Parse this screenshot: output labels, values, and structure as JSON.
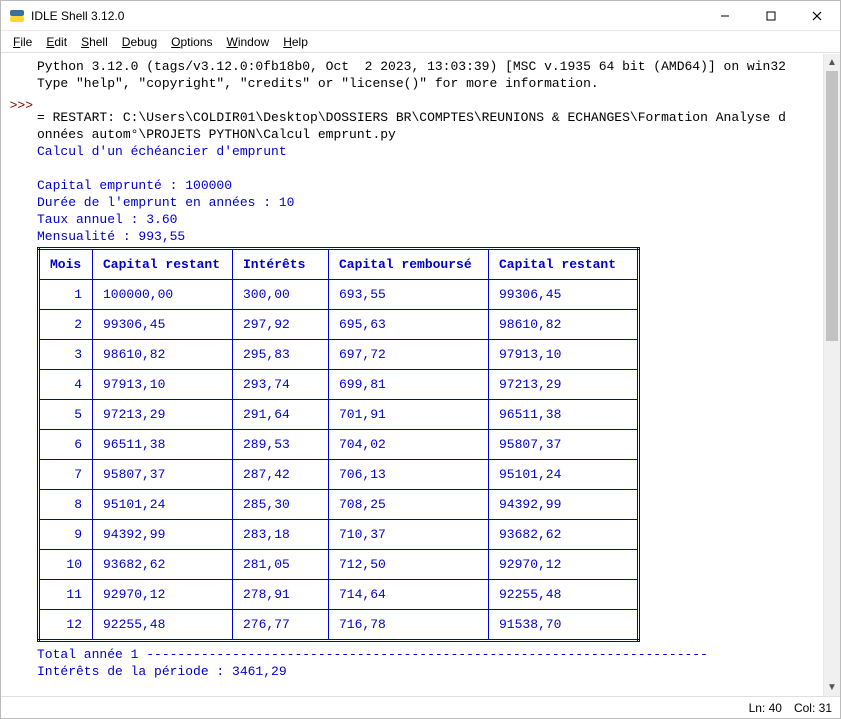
{
  "window": {
    "title": "IDLE Shell 3.12.0"
  },
  "menu": {
    "items": [
      "File",
      "Edit",
      "Shell",
      "Debug",
      "Options",
      "Window",
      "Help"
    ]
  },
  "gutter": {
    "prompt": ">>>"
  },
  "shell": {
    "banner_line1": "Python 3.12.0 (tags/v3.12.0:0fb18b0, Oct  2 2023, 13:03:39) [MSC v.1935 64 bit (AMD64)] on win32",
    "banner_line2": "Type \"help\", \"copyright\", \"credits\" or \"license()\" for more information.",
    "restart_line1": "= RESTART: C:\\Users\\COLDIR01\\Desktop\\DOSSIERS BR\\COMPTES\\REUNIONS & ECHANGES\\Formation Analyse d",
    "restart_line2": "onnées autom°\\PROJETS PYTHON\\Calcul emprunt.py",
    "out_title": "Calcul d'un échéancier d'emprunt",
    "out_cap": "Capital emprunté : 100000",
    "out_duree": "Durée de l'emprunt en années : 10",
    "out_taux": "Taux annuel : 3.60",
    "out_mens": "Mensualité : 993,55",
    "footer1": "Total année 1 ------------------------------------------------------------------------",
    "footer2": "Intérêts de la période : 3461,29"
  },
  "table": {
    "headers": [
      "Mois",
      "Capital restant",
      "Intérêts",
      "Capital remboursé",
      "Capital restant"
    ],
    "rows": [
      [
        "1",
        "100000,00",
        "300,00",
        "693,55",
        "99306,45"
      ],
      [
        "2",
        "99306,45",
        "297,92",
        "695,63",
        "98610,82"
      ],
      [
        "3",
        "98610,82",
        "295,83",
        "697,72",
        "97913,10"
      ],
      [
        "4",
        "97913,10",
        "293,74",
        "699,81",
        "97213,29"
      ],
      [
        "5",
        "97213,29",
        "291,64",
        "701,91",
        "96511,38"
      ],
      [
        "6",
        "96511,38",
        "289,53",
        "704,02",
        "95807,37"
      ],
      [
        "7",
        "95807,37",
        "287,42",
        "706,13",
        "95101,24"
      ],
      [
        "8",
        "95101,24",
        "285,30",
        "708,25",
        "94392,99"
      ],
      [
        "9",
        "94392,99",
        "283,18",
        "710,37",
        "93682,62"
      ],
      [
        "10",
        "93682,62",
        "281,05",
        "712,50",
        "92970,12"
      ],
      [
        "11",
        "92970,12",
        "278,91",
        "714,64",
        "92255,48"
      ],
      [
        "12",
        "92255,48",
        "276,77",
        "716,78",
        "91538,70"
      ]
    ]
  },
  "status": {
    "ln_label": "Ln:",
    "ln": "40",
    "col_label": "Col:",
    "col": "31"
  },
  "colors": {
    "stdout_blue": "#0000cd",
    "prompt_red": "#8b0000"
  }
}
